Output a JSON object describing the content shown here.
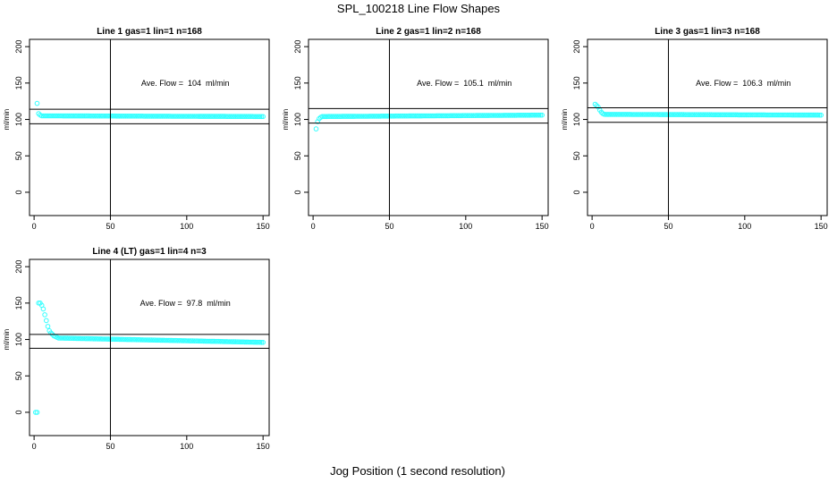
{
  "figure": {
    "title": "SPL_100218  Line Flow Shapes",
    "xlabel": "Jog Position (1 second resolution)"
  },
  "colors": {
    "points": "#33ffff",
    "axes": "#000000",
    "background": "#ffffff"
  },
  "chart_data": [
    {
      "type": "scatter",
      "title": "Line 1 gas=1 lin=1 n=168",
      "ylabel": "ml/min",
      "annotation": "Ave. Flow =  104  ml/min",
      "xlim": [
        -3,
        154
      ],
      "ylim": [
        -32,
        210
      ],
      "xticks": [
        0,
        50,
        100,
        150
      ],
      "yticks": [
        0,
        50,
        100,
        150,
        200
      ],
      "hlines": [
        114,
        94
      ],
      "vline": 50,
      "start_points": [
        [
          2,
          122
        ],
        [
          3,
          108
        ],
        [
          4,
          106
        ]
      ],
      "plateau": {
        "x_from": 5,
        "x_to": 150,
        "y_start": 105,
        "y_end": 104
      }
    },
    {
      "type": "scatter",
      "title": "Line 2 gas=1 lin=2 n=168",
      "ylabel": "ml/min",
      "annotation": "Ave. Flow =  105.1  ml/min",
      "xlim": [
        -3,
        154
      ],
      "ylim": [
        -32,
        210
      ],
      "xticks": [
        0,
        50,
        100,
        150
      ],
      "yticks": [
        0,
        50,
        100,
        150,
        200
      ],
      "hlines": [
        115,
        95
      ],
      "vline": 50,
      "start_points": [
        [
          2,
          87
        ],
        [
          3,
          97
        ],
        [
          4,
          101
        ],
        [
          5,
          103
        ]
      ],
      "plateau": {
        "x_from": 6,
        "x_to": 150,
        "y_start": 104,
        "y_end": 106
      }
    },
    {
      "type": "scatter",
      "title": "Line 3 gas=1 lin=3 n=168",
      "ylabel": "ml/min",
      "annotation": "Ave. Flow =  106.3  ml/min",
      "xlim": [
        -3,
        154
      ],
      "ylim": [
        -32,
        210
      ],
      "xticks": [
        0,
        50,
        100,
        150
      ],
      "yticks": [
        0,
        50,
        100,
        150,
        200
      ],
      "hlines": [
        116,
        96
      ],
      "vline": 50,
      "start_points": [
        [
          2,
          121
        ],
        [
          3,
          119
        ],
        [
          4,
          117
        ],
        [
          5,
          113
        ],
        [
          6,
          110
        ],
        [
          7,
          108
        ]
      ],
      "plateau": {
        "x_from": 8,
        "x_to": 150,
        "y_start": 107,
        "y_end": 106
      }
    },
    {
      "type": "scatter",
      "title": "Line 4 (LT) gas=1 lin=4 n=3",
      "ylabel": "ml/min",
      "annotation": "Ave. Flow =  97.8  ml/min",
      "xlim": [
        -3,
        154
      ],
      "ylim": [
        -32,
        210
      ],
      "xticks": [
        0,
        50,
        100,
        150
      ],
      "yticks": [
        0,
        50,
        100,
        150,
        200
      ],
      "hlines": [
        107,
        88
      ],
      "vline": 50,
      "start_points": [
        [
          1,
          0
        ],
        [
          2,
          0
        ],
        [
          3,
          150
        ],
        [
          4,
          150
        ],
        [
          5,
          147
        ],
        [
          6,
          142
        ],
        [
          7,
          134
        ],
        [
          8,
          126
        ],
        [
          9,
          118
        ],
        [
          10,
          112
        ],
        [
          11,
          109
        ],
        [
          12,
          107
        ],
        [
          13,
          105
        ],
        [
          14,
          104
        ],
        [
          15,
          103
        ]
      ],
      "plateau": {
        "x_from": 16,
        "x_to": 150,
        "y_start": 102,
        "y_end": 96
      }
    }
  ]
}
